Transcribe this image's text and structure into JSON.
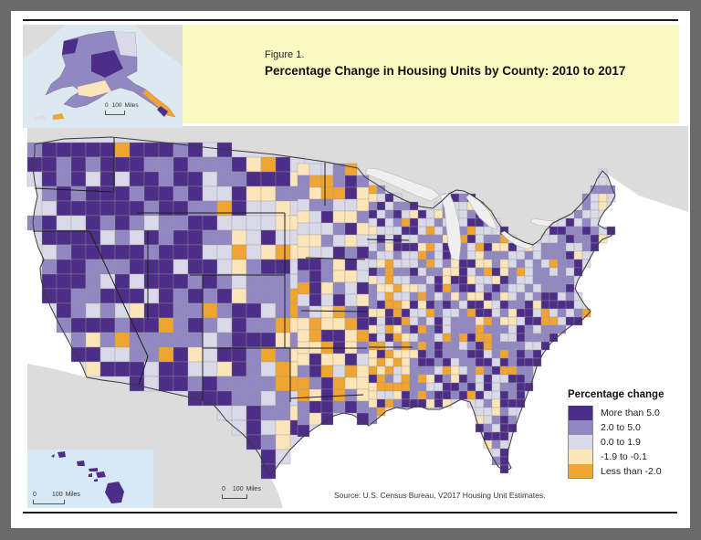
{
  "figure": {
    "label": "Figure 1.",
    "title": "Percentage Change in Housing Units by County: 2010 to 2017",
    "title_band_color": "#fbf9c3"
  },
  "legend": {
    "title": "Percentage change",
    "classes": [
      {
        "label": "More than 5.0",
        "color": "#4c2d87"
      },
      {
        "label": "2.0 to 5.0",
        "color": "#9187c1"
      },
      {
        "label": "0.0 to 1.9",
        "color": "#d9d9e8"
      },
      {
        "label": "-1.9 to -0.1",
        "color": "#fce5b8"
      },
      {
        "label": "Less than -2.0",
        "color": "#f0a431"
      }
    ]
  },
  "map": {
    "type": "choropleth",
    "region": "United States counties",
    "surrounding_land_color": "#dcdcdc",
    "lake_color": "#efefef",
    "scale_bars": {
      "main": {
        "zero": "0",
        "hundred": "100",
        "unit": "Miles"
      },
      "alaska": {
        "zero": "0",
        "hundred": "100",
        "unit": "Miles"
      },
      "hawaii": {
        "zero": "0",
        "hundred": "100",
        "unit": "Miles"
      }
    }
  },
  "insets": {
    "alaska": {
      "water_color": "#dde9f1"
    },
    "hawaii": {
      "water_color": "#d8e9f6"
    }
  },
  "source": "Source: U.S. Census Bureau, V2017 Housing Unit Estimates."
}
